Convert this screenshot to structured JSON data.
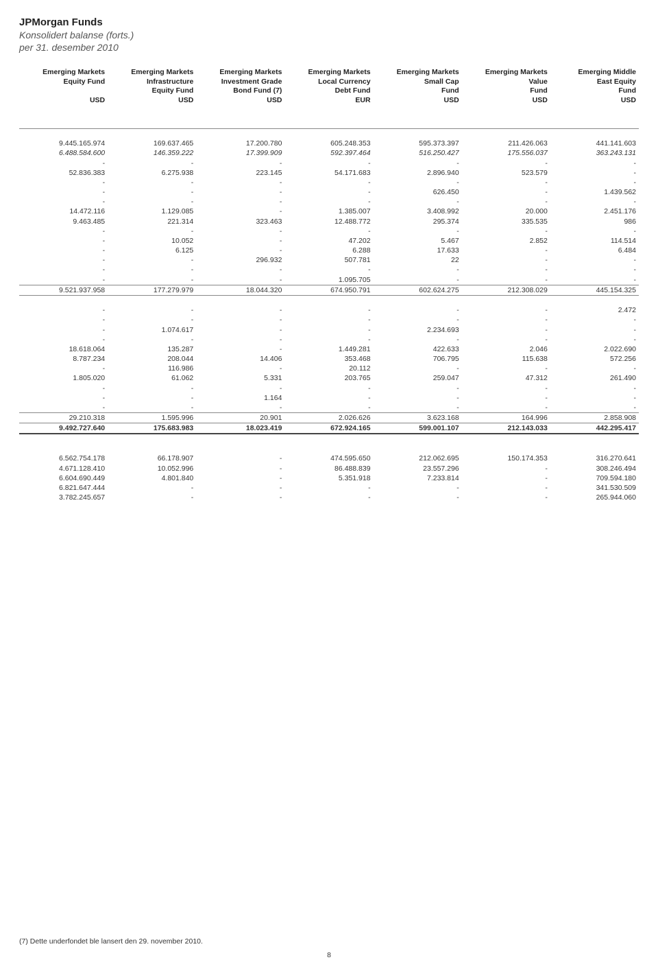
{
  "doc": {
    "title": "JPMorgan Funds",
    "subtitle": "Konsolidert balanse (forts.)",
    "date": "per 31. desember 2010",
    "footnote": "(7) Dette underfondet ble lansert den 29. november 2010.",
    "pagenum": "8"
  },
  "table": {
    "title_fontsize": 15,
    "body_fontsize": 10.5,
    "font_family": "Arial, Helvetica, sans-serif",
    "background_color": "#ffffff",
    "text_color": "#333333",
    "subtitle_color": "#555555",
    "border_thin": "#888888",
    "border_thick": "#444444",
    "columns": [
      {
        "l1": "Emerging Markets",
        "l2": "Equity Fund",
        "l3": "",
        "cur": "USD"
      },
      {
        "l1": "Emerging Markets",
        "l2": "Infrastructure",
        "l3": "Equity Fund",
        "cur": "USD"
      },
      {
        "l1": "Emerging Markets",
        "l2": "Investment Grade",
        "l3": "Bond Fund (7)",
        "cur": "USD"
      },
      {
        "l1": "Emerging Markets",
        "l2": "Local Currency",
        "l3": "Debt Fund",
        "cur": "EUR"
      },
      {
        "l1": "Emerging Markets",
        "l2": "Small Cap",
        "l3": "Fund",
        "cur": "USD"
      },
      {
        "l1": "Emerging Markets",
        "l2": "Value",
        "l3": "Fund",
        "cur": "USD"
      },
      {
        "l1": "Emerging Middle",
        "l2": "East Equity",
        "l3": "Fund",
        "cur": "USD"
      }
    ],
    "block1": [
      {
        "c": [
          "9.445.165.974",
          "169.637.465",
          "17.200.780",
          "605.248.353",
          "595.373.397",
          "211.426.063",
          "441.141.603"
        ]
      },
      {
        "c": [
          "6.488.584.600",
          "146.359.222",
          "17.399.909",
          "592.397.464",
          "516.250.427",
          "175.556.037",
          "363.243.131"
        ],
        "ital": true
      },
      {
        "c": [
          "-",
          "-",
          "-",
          "-",
          "-",
          "-",
          "-"
        ]
      },
      {
        "c": [
          "52.836.383",
          "6.275.938",
          "223.145",
          "54.171.683",
          "2.896.940",
          "523.579",
          "-"
        ]
      },
      {
        "c": [
          "-",
          "-",
          "-",
          "-",
          "-",
          "-",
          "-"
        ]
      },
      {
        "c": [
          "-",
          "-",
          "-",
          "-",
          "626.450",
          "-",
          "1.439.562"
        ]
      },
      {
        "c": [
          "-",
          "-",
          "-",
          "-",
          "-",
          "-",
          "-"
        ]
      },
      {
        "c": [
          "14.472.116",
          "1.129.085",
          "-",
          "1.385.007",
          "3.408.992",
          "20.000",
          "2.451.176"
        ]
      },
      {
        "c": [
          "9.463.485",
          "221.314",
          "323.463",
          "12.488.772",
          "295.374",
          "335.535",
          "986"
        ]
      },
      {
        "c": [
          "-",
          "-",
          "-",
          "-",
          "-",
          "-",
          "-"
        ]
      },
      {
        "c": [
          "-",
          "10.052",
          "-",
          "47.202",
          "5.467",
          "2.852",
          "114.514"
        ]
      },
      {
        "c": [
          "-",
          "6.125",
          "-",
          "6.288",
          "17.633",
          "-",
          "6.484"
        ]
      },
      {
        "c": [
          "-",
          "-",
          "296.932",
          "507.781",
          "22",
          "-",
          "-"
        ]
      },
      {
        "c": [
          "-",
          "-",
          "-",
          "-",
          "-",
          "-",
          "-"
        ]
      },
      {
        "c": [
          "-",
          "-",
          "-",
          "1.095.705",
          "-",
          "-",
          "-"
        ]
      }
    ],
    "subtotal1": {
      "c": [
        "9.521.937.958",
        "177.279.979",
        "18.044.320",
        "674.950.791",
        "602.624.275",
        "212.308.029",
        "445.154.325"
      ]
    },
    "block2": [
      {
        "c": [
          "-",
          "-",
          "-",
          "-",
          "-",
          "-",
          "2.472"
        ]
      },
      {
        "c": [
          "-",
          "-",
          "-",
          "-",
          "-",
          "-",
          "-"
        ]
      },
      {
        "c": [
          "-",
          "1.074.617",
          "-",
          "-",
          "2.234.693",
          "-",
          "-"
        ]
      },
      {
        "c": [
          "-",
          "-",
          "-",
          "-",
          "-",
          "-",
          "-"
        ]
      },
      {
        "c": [
          "18.618.064",
          "135.287",
          "-",
          "1.449.281",
          "422.633",
          "2.046",
          "2.022.690"
        ]
      },
      {
        "c": [
          "8.787.234",
          "208.044",
          "14.406",
          "353.468",
          "706.795",
          "115.638",
          "572.256"
        ]
      },
      {
        "c": [
          "-",
          "116.986",
          "-",
          "20.112",
          "-",
          "-",
          "-"
        ]
      },
      {
        "c": [
          "1.805.020",
          "61.062",
          "5.331",
          "203.765",
          "259.047",
          "47.312",
          "261.490"
        ]
      },
      {
        "c": [
          "-",
          "-",
          "-",
          "-",
          "-",
          "-",
          "-"
        ]
      },
      {
        "c": [
          "-",
          "-",
          "1.164",
          "-",
          "-",
          "-",
          "-"
        ]
      },
      {
        "c": [
          "-",
          "-",
          "-",
          "-",
          "-",
          "-",
          "-"
        ]
      }
    ],
    "subtotal2": {
      "c": [
        "29.210.318",
        "1.595.996",
        "20.901",
        "2.026.626",
        "3.623.168",
        "164.996",
        "2.858.908"
      ]
    },
    "grandtotal": {
      "c": [
        "9.492.727.640",
        "175.683.983",
        "18.023.419",
        "672.924.165",
        "599.001.107",
        "212.143.033",
        "442.295.417"
      ]
    },
    "block3": [
      {
        "c": [
          "6.562.754.178",
          "66.178.907",
          "-",
          "474.595.650",
          "212.062.695",
          "150.174.353",
          "316.270.641"
        ]
      },
      {
        "c": [
          "4.671.128.410",
          "10.052.996",
          "-",
          "86.488.839",
          "23.557.296",
          "-",
          "308.246.494"
        ]
      },
      {
        "c": [
          "6.604.690.449",
          "4.801.840",
          "-",
          "5.351.918",
          "7.233.814",
          "-",
          "709.594.180"
        ]
      },
      {
        "c": [
          "6.821.647.444",
          "-",
          "-",
          "-",
          "-",
          "-",
          "341.530.509"
        ]
      },
      {
        "c": [
          "3.782.245.657",
          "-",
          "-",
          "-",
          "-",
          "-",
          "265.944.060"
        ]
      }
    ]
  }
}
